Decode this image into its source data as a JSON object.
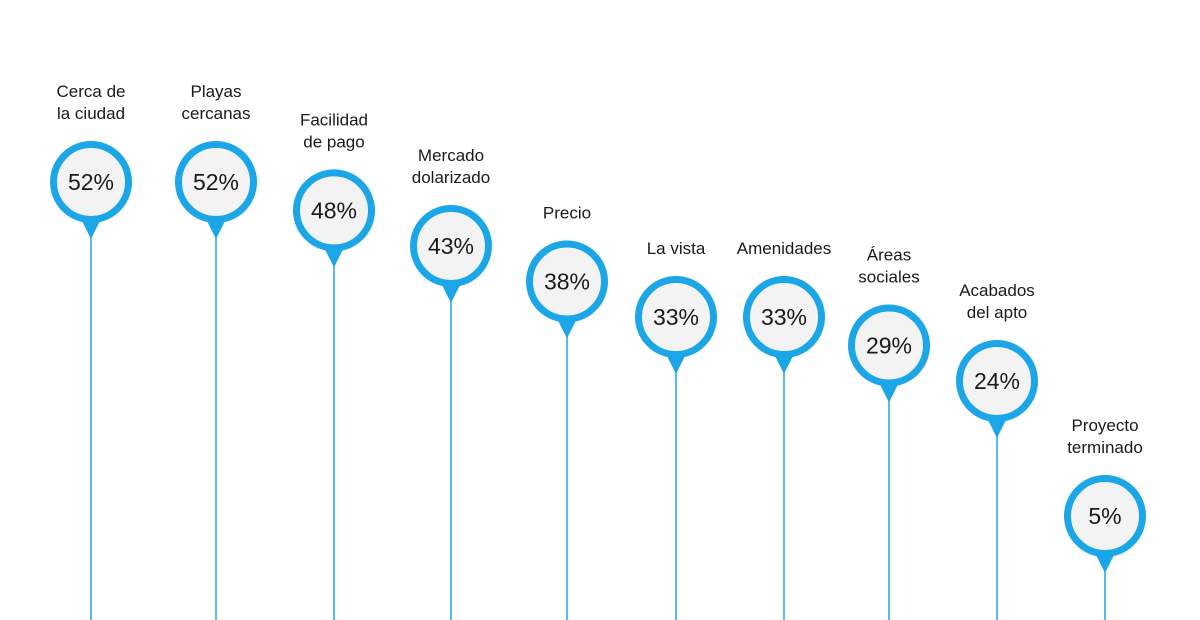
{
  "colors": {
    "accent": "#1ba6e8",
    "circle_fill": "#f3f3f3",
    "text": "#1a1a1a"
  },
  "chart_data": {
    "type": "bar",
    "unit": "%",
    "categories": [
      [
        "Cerca de",
        "la ciudad"
      ],
      [
        "Playas",
        "cercanas"
      ],
      [
        "Facilidad",
        "de pago"
      ],
      [
        "Mercado",
        "dolarizado"
      ],
      [
        "Precio"
      ],
      [
        "La vista"
      ],
      [
        "Amenidades"
      ],
      [
        "Áreas",
        "sociales"
      ],
      [
        "Acabados",
        "del apto"
      ],
      [
        "Proyecto",
        "terminado"
      ]
    ],
    "values": [
      52,
      52,
      48,
      43,
      38,
      33,
      33,
      29,
      24,
      5
    ],
    "value_labels": [
      "52%",
      "52%",
      "48%",
      "43%",
      "38%",
      "33%",
      "33%",
      "29%",
      "24%",
      "5%"
    ],
    "ylim": [
      0,
      60
    ],
    "grid": false,
    "legend": "none"
  }
}
